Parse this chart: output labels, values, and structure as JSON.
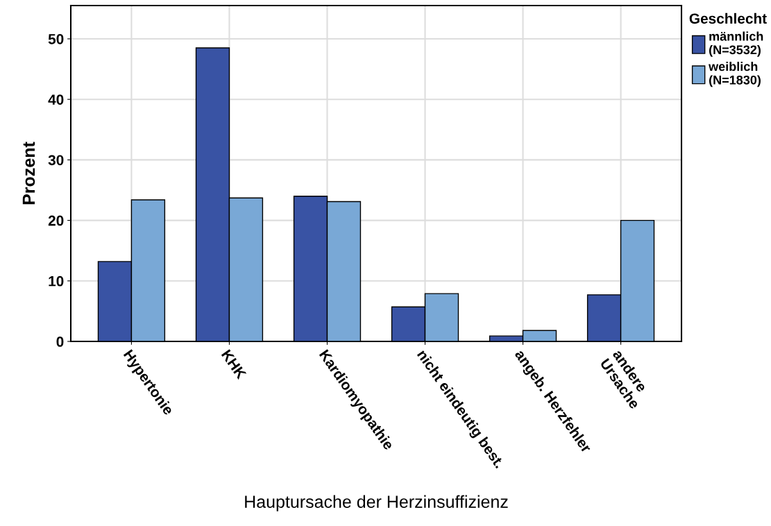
{
  "chart_data": {
    "type": "bar",
    "xlabel": "Hauptursache der Herzinsuffizienz",
    "ylabel": "Prozent",
    "legend_title": "Geschlecht",
    "categories": [
      "Hypertonie",
      "KHK",
      "Kardiomyopathie",
      "nicht eindeutig best.",
      "angeb. Herzfehler",
      "andere\nUrsache"
    ],
    "series": [
      {
        "name": "männlich\n(N=3532)",
        "color": "#3953a4",
        "values": [
          13.2,
          48.5,
          24.0,
          5.7,
          0.9,
          7.7
        ]
      },
      {
        "name": "weiblich\n(N=1830)",
        "color": "#79a8d6",
        "values": [
          23.4,
          23.7,
          23.1,
          7.9,
          1.8,
          20.0
        ]
      }
    ],
    "ylim": [
      0,
      55.5
    ],
    "yticks": [
      0,
      10,
      20,
      30,
      40,
      50
    ],
    "grid": true,
    "legend": "top right"
  }
}
